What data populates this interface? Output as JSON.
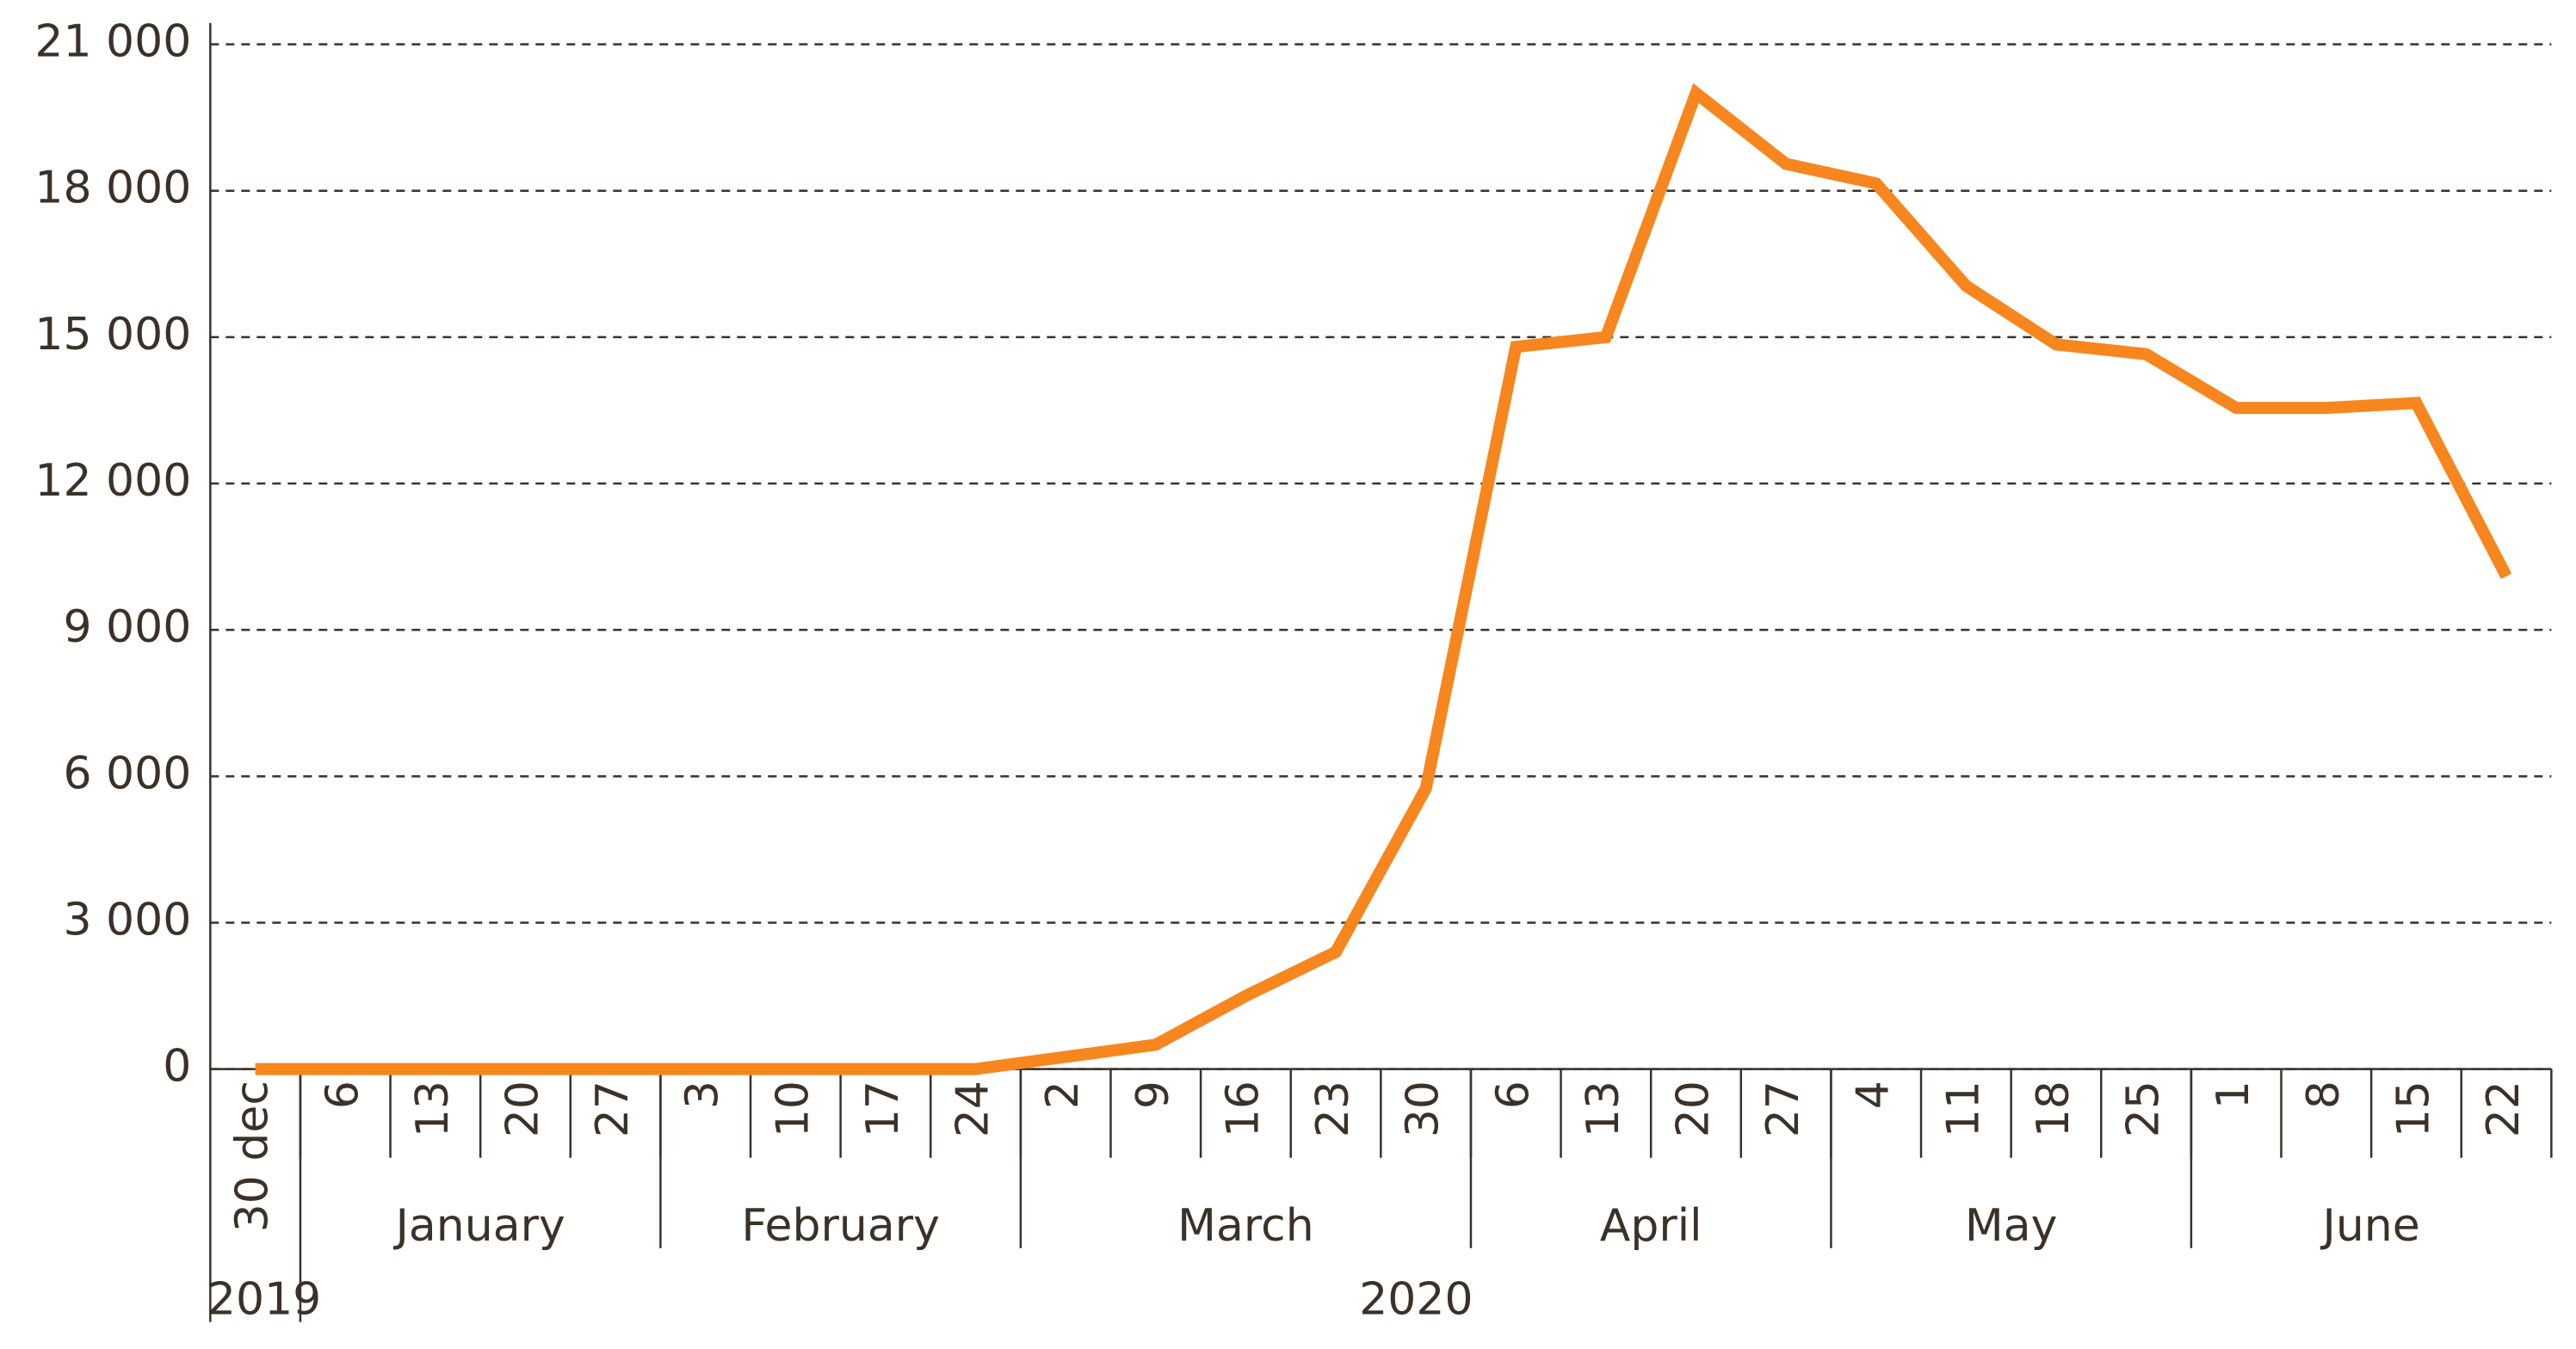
{
  "chart_data": {
    "type": "line",
    "categories": [
      "30 dec",
      "6",
      "13",
      "20",
      "27",
      "3",
      "10",
      "17",
      "24",
      "2",
      "9",
      "16",
      "23",
      "30",
      "6",
      "13",
      "20",
      "27",
      "4",
      "11",
      "18",
      "25",
      "1",
      "8",
      "15",
      "22"
    ],
    "months": [
      "January",
      "February",
      "March",
      "April",
      "May",
      "June"
    ],
    "years": [
      "2019",
      "2020"
    ],
    "series": [
      {
        "color": "#f7861e",
        "values": [
          0,
          0,
          0,
          0,
          0,
          0,
          0,
          0,
          0,
          250,
          500,
          1500,
          2400,
          5750,
          14800,
          15000,
          20000,
          18550,
          18150,
          16050,
          14850,
          14650,
          13550,
          13550,
          13650,
          10100
        ]
      }
    ],
    "ylim": [
      0,
      21000
    ],
    "yticks": [
      0,
      {
        "value": 3000,
        "label": "3 000"
      },
      {
        "value": 6000,
        "label": "6 000"
      },
      {
        "value": 9000,
        "label": "9 000"
      },
      {
        "value": 12000,
        "label": "12 000"
      },
      {
        "value": 15000,
        "label": "15 000"
      },
      {
        "value": 18000,
        "label": "18 000"
      },
      {
        "value": 21000,
        "label": "21 000"
      }
    ],
    "grid": true
  }
}
